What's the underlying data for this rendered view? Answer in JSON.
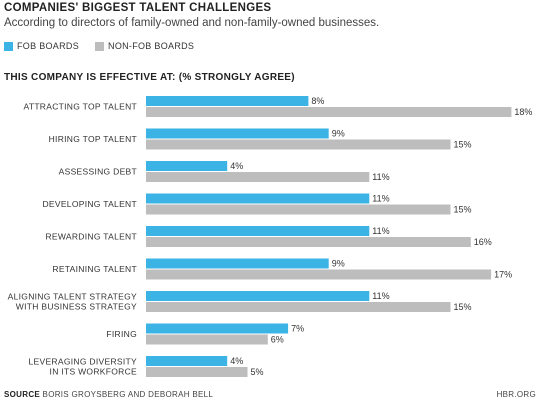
{
  "header": {
    "title": "COMPANIES' BIGGEST TALENT CHALLENGES",
    "subtitle": "According to directors of family-owned and non-family-owned businesses."
  },
  "legend": {
    "fob_label": "FOB BOARDS",
    "nonfob_label": "NON-FOB BOARDS"
  },
  "section_heading": "THIS COMPANY IS EFFECTIVE AT: (% STRONGLY AGREE)",
  "colors": {
    "fob": "#3bb4e5",
    "nonfob": "#bdbdbd"
  },
  "footer": {
    "source_label": "SOURCE",
    "source_text": " BORIS GROYSBERG AND DEBORAH BELL",
    "brand": "HBR.ORG"
  },
  "chart_data": {
    "type": "bar",
    "orientation": "horizontal",
    "categories": [
      "ATTRACTING TOP TALENT",
      "HIRING TOP TALENT",
      "ASSESSING DEBT",
      "DEVELOPING TALENT",
      "REWARDING TALENT",
      "RETAINING TALENT",
      "ALIGNING TALENT STRATEGY\nWITH BUSINESS STRATEGY",
      "FIRING",
      "LEVERAGING DIVERSITY\nIN ITS WORKFORCE"
    ],
    "series": [
      {
        "name": "FOB BOARDS",
        "values": [
          8,
          9,
          4,
          11,
          11,
          9,
          11,
          7,
          4
        ],
        "labels": [
          "8%",
          "9%",
          "4%",
          "11%",
          "11%",
          "9%",
          "11%",
          "7%",
          "4%"
        ]
      },
      {
        "name": "NON-FOB BOARDS",
        "values": [
          18,
          15,
          11,
          15,
          16,
          17,
          15,
          6,
          5
        ],
        "labels": [
          "18%",
          "15%",
          "11%",
          "15%",
          "16%",
          "17%",
          "15%",
          "6%",
          "5%"
        ]
      }
    ],
    "xlim": [
      0,
      18
    ],
    "grid": false,
    "legend_position": "top-left"
  }
}
